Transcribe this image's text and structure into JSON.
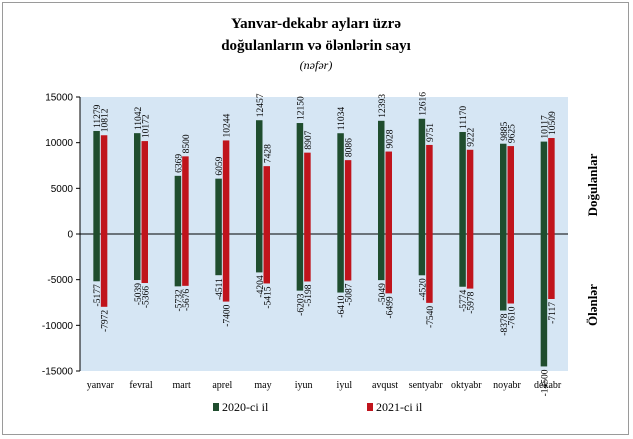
{
  "chart_data": {
    "type": "bar",
    "title_line1": "Yanvar-dekabr ayları üzrə",
    "title_line2": "doğulanların və ölənlərin sayı",
    "subtitle": "(nəfər)",
    "side_label_top": "Doğulanlar",
    "side_label_bottom": "Ölənlər",
    "ylim": [
      -15000,
      15000
    ],
    "yticks": [
      -15000,
      -10000,
      -5000,
      0,
      5000,
      10000,
      15000
    ],
    "ytick_labels": [
      "-15000",
      "-10000",
      "-5000",
      "0",
      "5000",
      "10000",
      "15000"
    ],
    "legend_position": "bottom",
    "colors": {
      "s2020": "#1f4d2e",
      "s2021": "#c0141c",
      "plot_bg": "#d6e6f4"
    },
    "categories": [
      "yanvar",
      "fevral",
      "mart",
      "aprel",
      "may",
      "iyun",
      "iyul",
      "avqust",
      "sentyabr",
      "oktyabr",
      "noyabr",
      "dekabr"
    ],
    "series": [
      {
        "name": "2020-ci il",
        "kind": "births",
        "values": [
          11279,
          11042,
          6369,
          6059,
          12457,
          12150,
          11034,
          12393,
          12616,
          11170,
          9885,
          10117
        ],
        "labels": [
          "11279",
          "11042",
          "6369",
          "6059",
          "12457",
          "12150",
          "11034",
          "12393",
          "12616",
          "11170",
          "9885",
          "10117"
        ]
      },
      {
        "name": "2021-ci il",
        "kind": "births",
        "values": [
          10812,
          10172,
          8500,
          10244,
          7428,
          8907,
          8086,
          9028,
          9751,
          9222,
          9625,
          10509
        ],
        "labels": [
          "10812",
          "10172",
          "8500",
          "10244",
          "7428",
          "8907",
          "8086",
          "9028",
          "9751",
          "9222",
          "9625",
          "10509"
        ]
      },
      {
        "name": "2020-ci il",
        "kind": "deaths",
        "values": [
          -5177,
          -5039,
          -5732,
          -4511,
          -4204,
          -6203,
          -6410,
          -5049,
          -4520,
          -5774,
          -8378,
          -14500
        ],
        "labels": [
          "-5177",
          "-5039",
          "-5732",
          "-4511",
          "-4204",
          "-6203",
          "-6410",
          "-5049",
          "-4520",
          "-5774",
          "-8378",
          "-14500"
        ]
      },
      {
        "name": "2021-ci il",
        "kind": "deaths",
        "values": [
          -7972,
          -5366,
          -5676,
          -7400,
          -5415,
          -5198,
          -5087,
          -6499,
          -7540,
          -5978,
          -7610,
          -7117
        ],
        "labels": [
          "-7972",
          "-5366",
          "-5676",
          "-7400",
          "-5415",
          "-5198",
          "-5087",
          "-6499",
          "-7540",
          "-5978",
          "-7610",
          "-7117"
        ]
      }
    ],
    "legend": [
      {
        "name": "2020-ci il",
        "color": "#1f4d2e"
      },
      {
        "name": "2021-ci il",
        "color": "#c0141c"
      }
    ]
  }
}
